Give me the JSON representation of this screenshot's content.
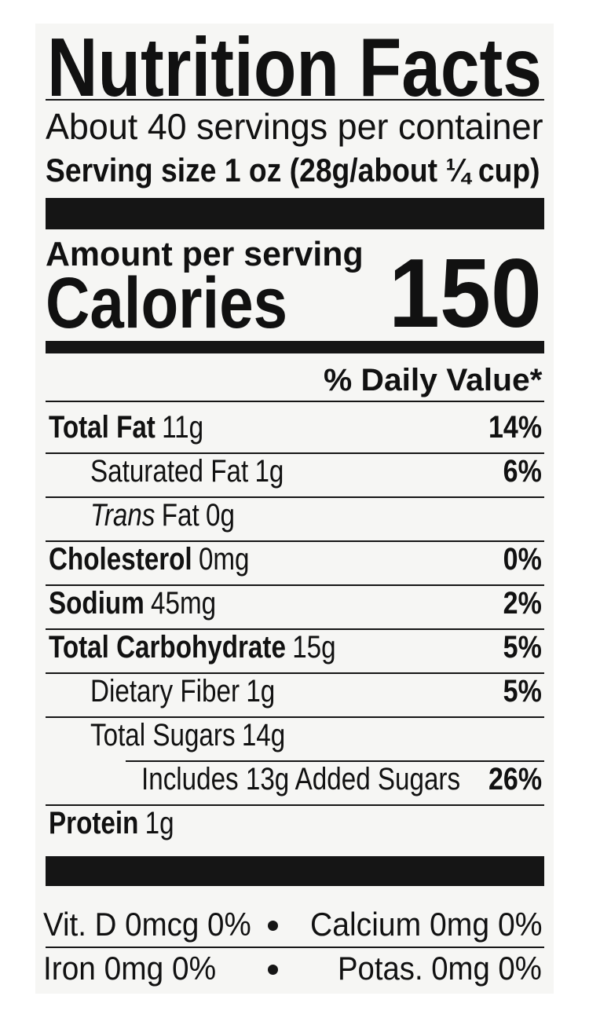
{
  "header": {
    "title": "Nutrition Facts",
    "servings": "About 40 servings per container",
    "serving_size": "Serving size 1 oz (28g/about ¼ cup)"
  },
  "calories": {
    "amount_per_serving": "Amount per serving",
    "label": "Calories",
    "value": "150"
  },
  "daily_value_header": "% Daily Value*",
  "rows": [
    {
      "name": "Total Fat",
      "amount": "11g",
      "dv": "14%"
    },
    {
      "name": "Saturated Fat",
      "amount": "1g",
      "dv": "6%"
    },
    {
      "name_italic": "Trans",
      "name": "Fat",
      "amount": "0g"
    },
    {
      "name": "Cholesterol",
      "amount": "0mg",
      "dv": "0%"
    },
    {
      "name": "Sodium",
      "amount": "45mg",
      "dv": "2%"
    },
    {
      "name": "Total Carbohydrate",
      "amount": "15g",
      "dv": "5%"
    },
    {
      "name": "Dietary Fiber",
      "amount": "1g",
      "dv": "5%"
    },
    {
      "name": "Total Sugars",
      "amount": "14g"
    },
    {
      "name": "Includes 13g Added Sugars",
      "dv": "26%"
    },
    {
      "name": "Protein",
      "amount": "1g"
    }
  ],
  "vitamins": [
    [
      "Vit. D 0mcg 0%",
      "Calcium 0mg 0%"
    ],
    [
      "Iron 0mg 0%",
      "Potas. 0mg 0%"
    ]
  ]
}
